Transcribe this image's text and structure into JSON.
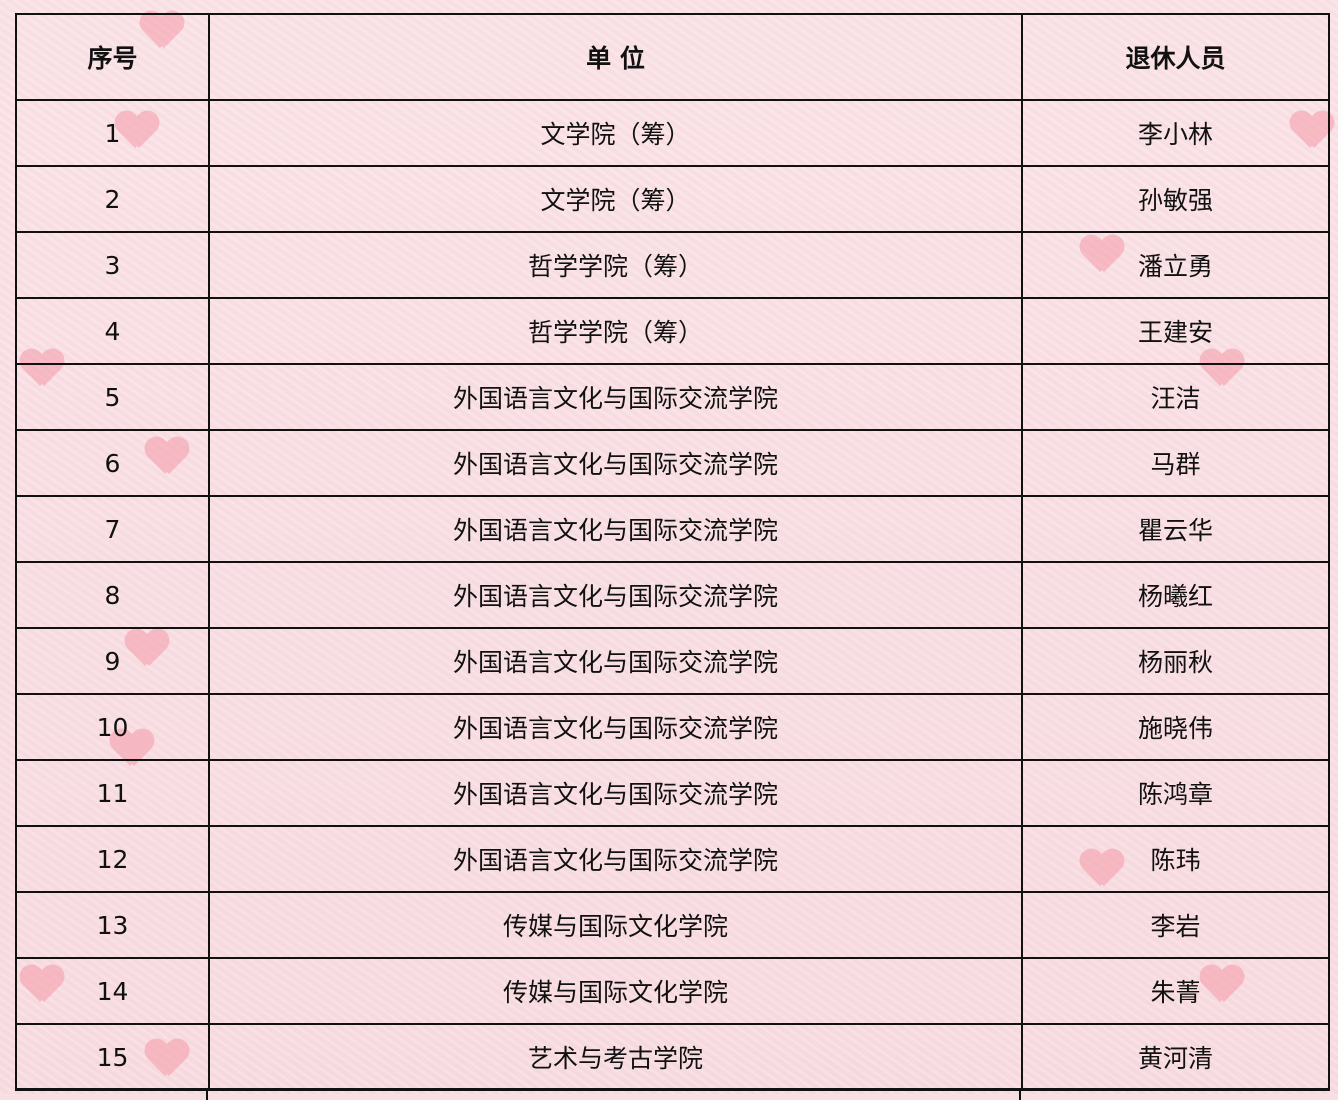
{
  "table": {
    "headers": [
      "序号",
      "单 位",
      "退休人员"
    ],
    "rows": [
      {
        "no": "1",
        "unit": "文学院（筹）",
        "name": "李小林"
      },
      {
        "no": "2",
        "unit": "文学院（筹）",
        "name": "孙敏强"
      },
      {
        "no": "3",
        "unit": "哲学学院（筹）",
        "name": "潘立勇"
      },
      {
        "no": "4",
        "unit": "哲学学院（筹）",
        "name": "王建安"
      },
      {
        "no": "5",
        "unit": "外国语言文化与国际交流学院",
        "name": "汪洁"
      },
      {
        "no": "6",
        "unit": "外国语言文化与国际交流学院",
        "name": "马群"
      },
      {
        "no": "7",
        "unit": "外国语言文化与国际交流学院",
        "name": "瞿云华"
      },
      {
        "no": "8",
        "unit": "外国语言文化与国际交流学院",
        "name": "杨曦红"
      },
      {
        "no": "9",
        "unit": "外国语言文化与国际交流学院",
        "name": "杨丽秋"
      },
      {
        "no": "10",
        "unit": "外国语言文化与国际交流学院",
        "name": "施晓伟"
      },
      {
        "no": "11",
        "unit": "外国语言文化与国际交流学院",
        "name": "陈鸿章"
      },
      {
        "no": "12",
        "unit": "外国语言文化与国际交流学院",
        "name": "陈玮"
      },
      {
        "no": "13",
        "unit": "传媒与国际文化学院",
        "name": "李岩"
      },
      {
        "no": "14",
        "unit": "传媒与国际文化学院",
        "name": "朱菁"
      },
      {
        "no": "15",
        "unit": "艺术与考古学院",
        "name": "黄河清"
      }
    ]
  },
  "colors": {
    "background": "#f8dfe3",
    "border": "#111111",
    "heart": "#f59aa8"
  }
}
